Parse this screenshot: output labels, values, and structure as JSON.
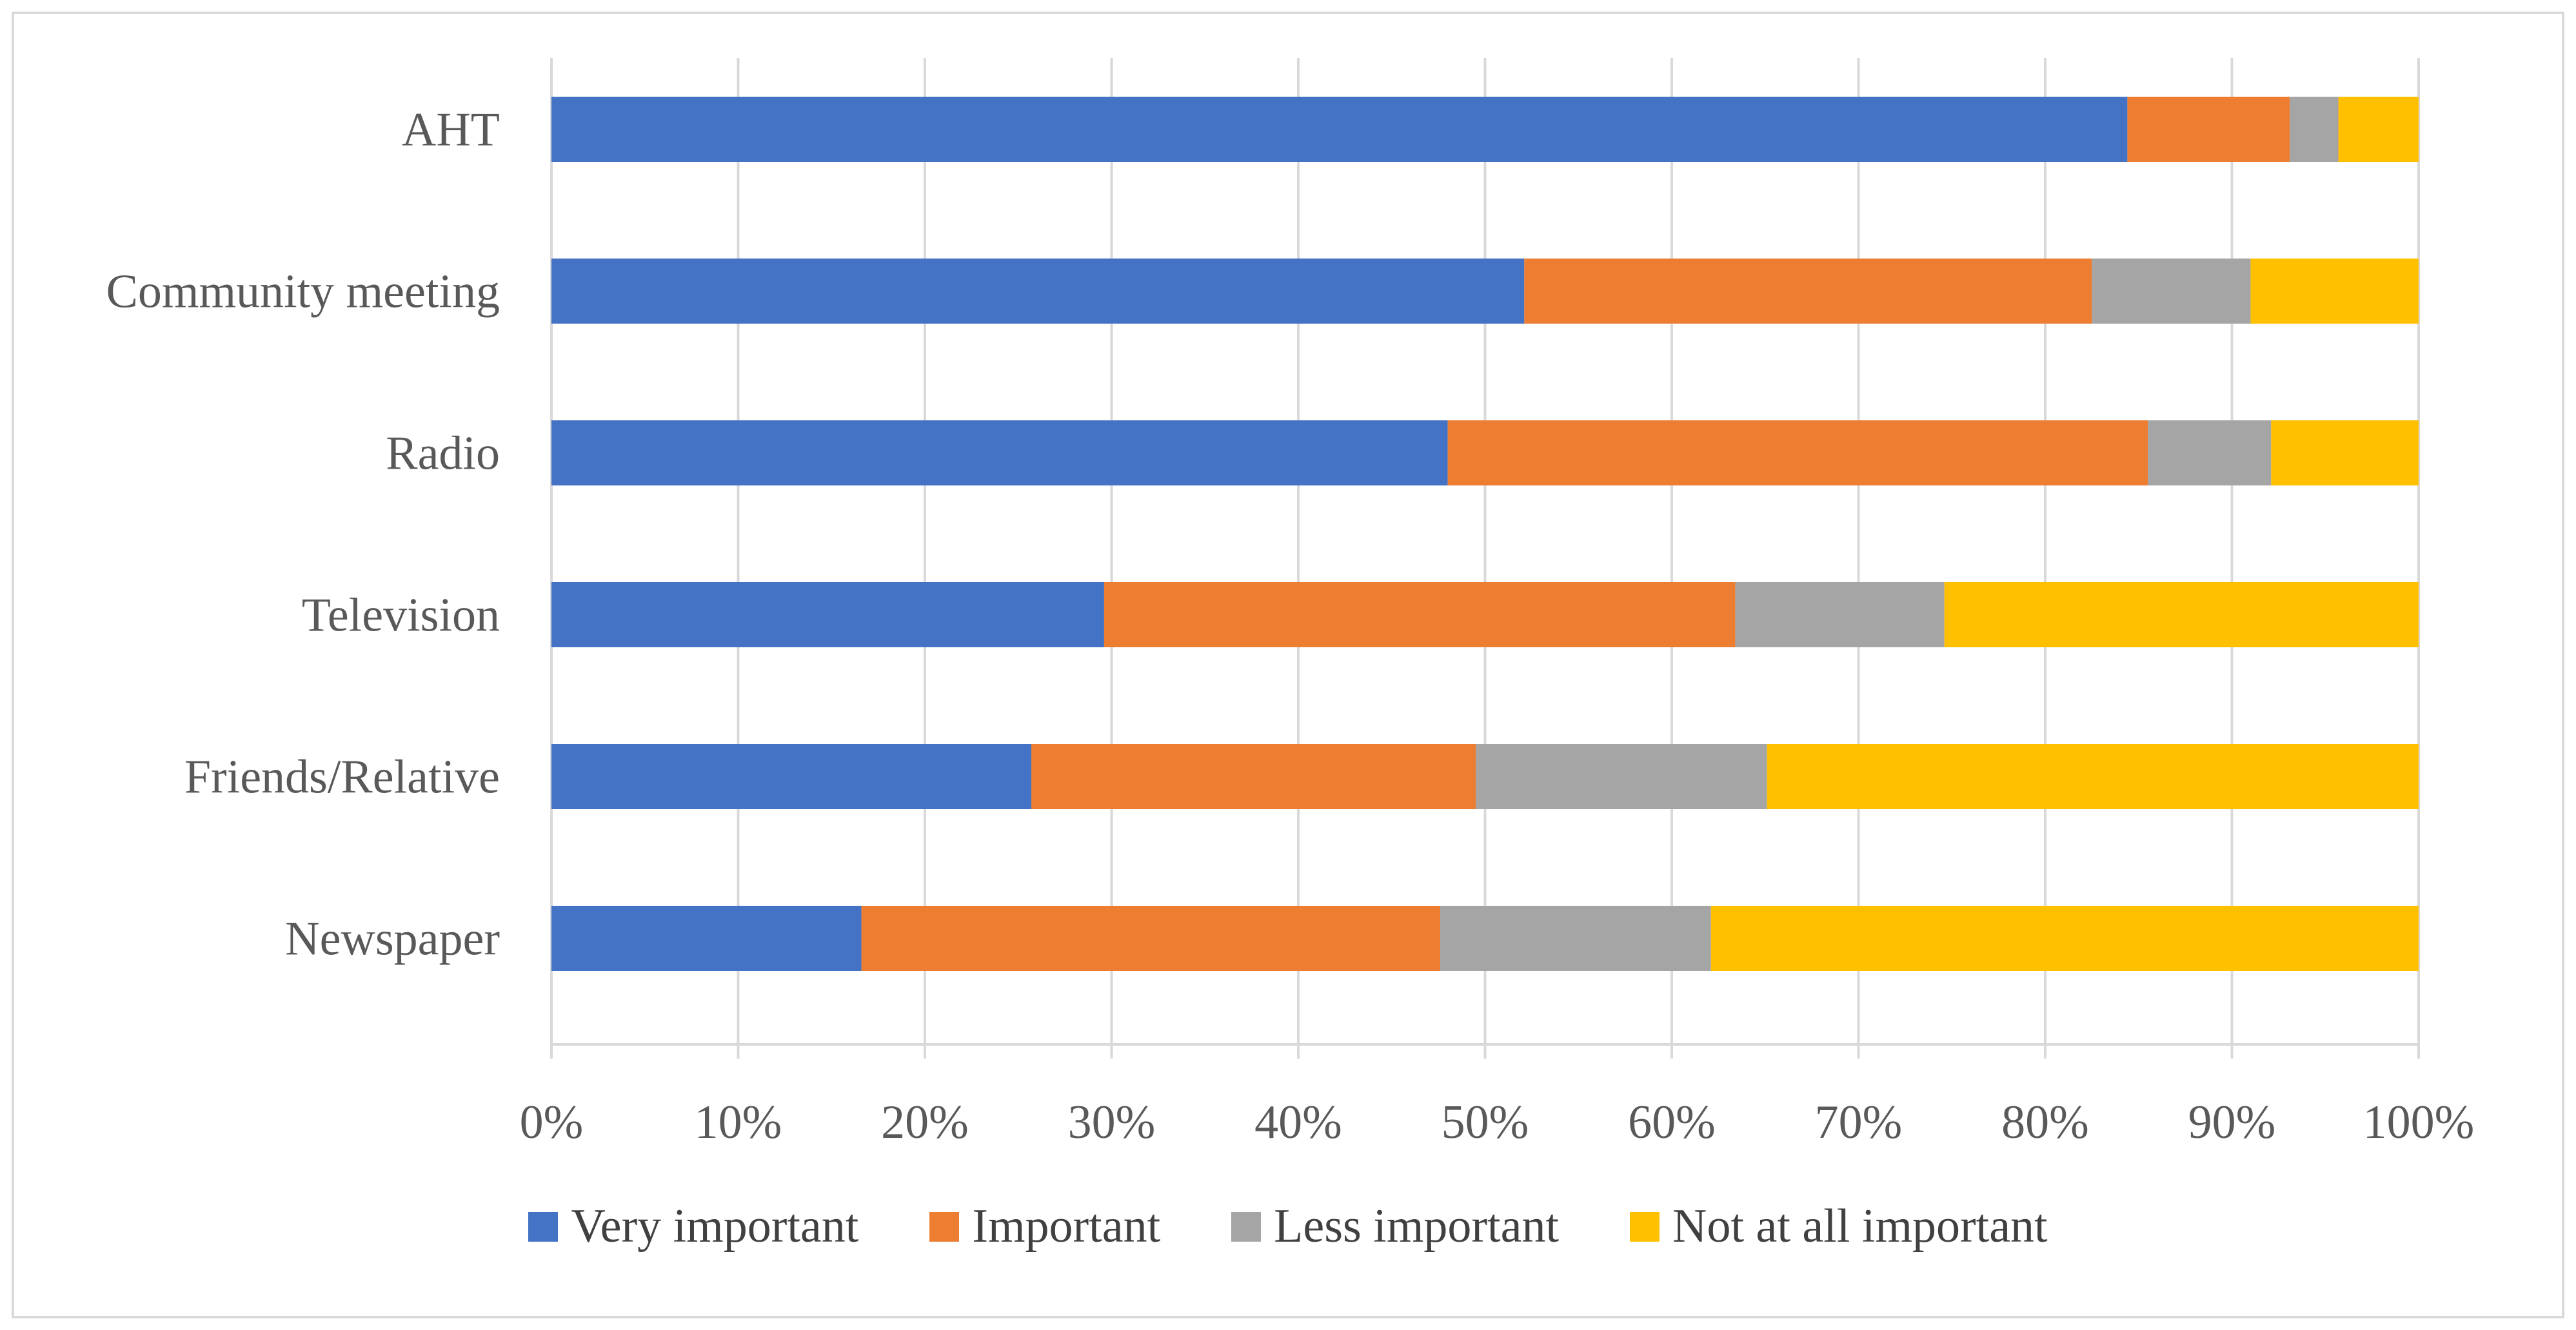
{
  "chart_data": {
    "type": "bar",
    "orientation": "horizontal",
    "stacked": true,
    "percent_stacked": true,
    "title": "",
    "xlabel": "",
    "ylabel": "",
    "xlim": [
      0,
      100
    ],
    "x_ticks": [
      "0%",
      "10%",
      "20%",
      "30%",
      "40%",
      "50%",
      "60%",
      "70%",
      "80%",
      "90%",
      "100%"
    ],
    "grid": "vertical",
    "legend_position": "bottom",
    "categories": [
      "AHT",
      "Community meeting",
      "Radio",
      "Television",
      "Friends/Relative",
      "Newspaper"
    ],
    "series": [
      {
        "name": "Very important",
        "color": "#4472C4",
        "values": [
          84.4,
          52.1,
          48.0,
          29.6,
          25.7,
          16.6
        ]
      },
      {
        "name": "Important",
        "color": "#ED7D31",
        "values": [
          8.7,
          30.4,
          37.5,
          33.8,
          23.8,
          31.0
        ]
      },
      {
        "name": "Less important",
        "color": "#A5A5A5",
        "values": [
          2.6,
          8.5,
          6.6,
          11.2,
          15.6,
          14.5
        ]
      },
      {
        "name": "Not at all important",
        "color": "#FFC000",
        "values": [
          4.3,
          9.0,
          7.9,
          25.4,
          34.9,
          37.9
        ]
      }
    ]
  }
}
